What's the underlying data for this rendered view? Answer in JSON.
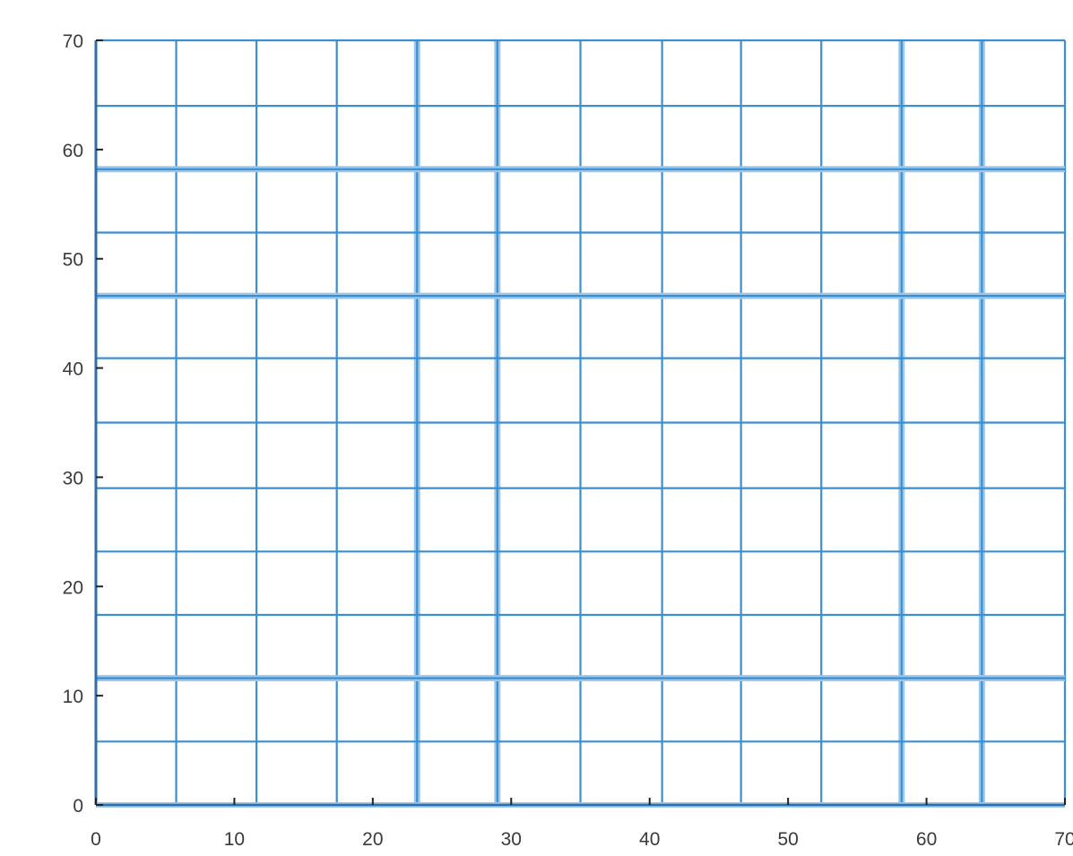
{
  "chart_data": {
    "type": "scatter",
    "title": "",
    "xlabel": "",
    "ylabel": "",
    "xlim": [
      0,
      70
    ],
    "ylim": [
      0,
      70
    ],
    "x_ticks": [
      0,
      10,
      20,
      30,
      40,
      50,
      60,
      70
    ],
    "y_ticks": [
      0,
      10,
      20,
      30,
      40,
      50,
      60,
      70
    ],
    "x_tick_labels": [
      "0",
      "10",
      "20",
      "30",
      "40",
      "50",
      "60",
      "70"
    ],
    "y_tick_labels": [
      "0",
      "10",
      "20",
      "30",
      "40",
      "50",
      "60",
      "70"
    ],
    "grid_x_values": [
      0,
      5.8,
      11.6,
      17.4,
      23.2,
      29.0,
      35.0,
      40.9,
      46.6,
      52.4,
      58.2,
      64.0,
      70
    ],
    "grid_y_values": [
      0,
      5.8,
      11.6,
      17.4,
      23.2,
      29.0,
      35.0,
      40.9,
      46.6,
      52.4,
      58.2,
      64.0,
      70
    ],
    "grid_line_color": "#3b8ed0",
    "emphasized_line_color": "#9cc7ea",
    "axis_color": "#2f6fa8",
    "series": [],
    "grid": true
  }
}
